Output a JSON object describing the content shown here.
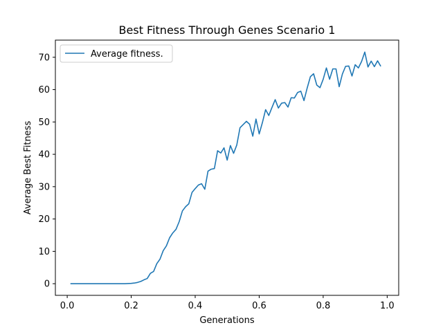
{
  "chart_data": {
    "type": "line",
    "title": "Best Fitness Through Genes Scenario 1",
    "xlabel": "Generations",
    "ylabel": "Average Best Fitness",
    "xlim": [
      -0.037,
      1.036
    ],
    "ylim": [
      -3.6,
      75.3
    ],
    "xticks": [
      0.0,
      0.2,
      0.4,
      0.6,
      0.8,
      1.0
    ],
    "xtick_labels": [
      "0.0",
      "0.2",
      "0.4",
      "0.6",
      "0.8",
      "1.0"
    ],
    "yticks": [
      0,
      10,
      20,
      30,
      40,
      50,
      60,
      70
    ],
    "ytick_labels": [
      "0",
      "10",
      "20",
      "30",
      "40",
      "50",
      "60",
      "70"
    ],
    "grid": false,
    "legend": {
      "position": "top-left"
    },
    "color": "#1f77b4",
    "series": [
      {
        "name": "Average fitness.",
        "x": [
          0.01,
          0.02,
          0.03,
          0.04,
          0.05,
          0.06,
          0.07,
          0.08,
          0.09,
          0.1,
          0.11,
          0.12,
          0.13,
          0.14,
          0.15,
          0.16,
          0.17,
          0.18,
          0.19,
          0.2,
          0.21,
          0.22,
          0.23,
          0.24,
          0.25,
          0.26,
          0.27,
          0.28,
          0.29,
          0.3,
          0.31,
          0.32,
          0.33,
          0.34,
          0.35,
          0.36,
          0.37,
          0.38,
          0.39,
          0.4,
          0.41,
          0.42,
          0.43,
          0.44,
          0.45,
          0.46,
          0.47,
          0.48,
          0.49,
          0.5,
          0.51,
          0.52,
          0.53,
          0.54,
          0.55,
          0.56,
          0.57,
          0.58,
          0.59,
          0.6,
          0.61,
          0.62,
          0.63,
          0.64,
          0.65,
          0.66,
          0.67,
          0.68,
          0.69,
          0.7,
          0.71,
          0.72,
          0.73,
          0.74,
          0.75,
          0.76,
          0.77,
          0.78,
          0.79,
          0.8,
          0.81,
          0.82,
          0.83,
          0.84,
          0.85,
          0.86,
          0.87,
          0.88,
          0.89,
          0.9,
          0.91,
          0.92,
          0.93,
          0.94,
          0.95,
          0.96,
          0.97,
          0.98
        ],
        "values": [
          0,
          0,
          0,
          0,
          0,
          0,
          0,
          0,
          0,
          0,
          0,
          0,
          0,
          0,
          0,
          0,
          0,
          0,
          0.05,
          0.1,
          0.2,
          0.4,
          0.7,
          1.2,
          1.6,
          3.2,
          3.8,
          6.2,
          7.6,
          10.2,
          11.7,
          14.2,
          15.7,
          16.8,
          19.2,
          22.5,
          23.8,
          24.7,
          28.2,
          29.4,
          30.5,
          30.9,
          29.2,
          34.8,
          35.4,
          35.6,
          41.1,
          40.4,
          42.0,
          38.2,
          42.7,
          40.3,
          42.9,
          48.2,
          49.2,
          50.2,
          49.3,
          45.6,
          50.9,
          46.3,
          49.8,
          53.8,
          52.0,
          54.5,
          56.9,
          54.3,
          55.8,
          56.0,
          54.6,
          57.5,
          57.4,
          59.1,
          59.5,
          56.6,
          60.5,
          64.0,
          64.9,
          61.4,
          60.6,
          63.2,
          66.7,
          63.2,
          66.4,
          66.4,
          60.9,
          64.8,
          67.2,
          67.3,
          64.2,
          67.7,
          66.7,
          68.7,
          71.6,
          67.0,
          68.8,
          67.1,
          68.9,
          67.2
        ]
      }
    ]
  }
}
